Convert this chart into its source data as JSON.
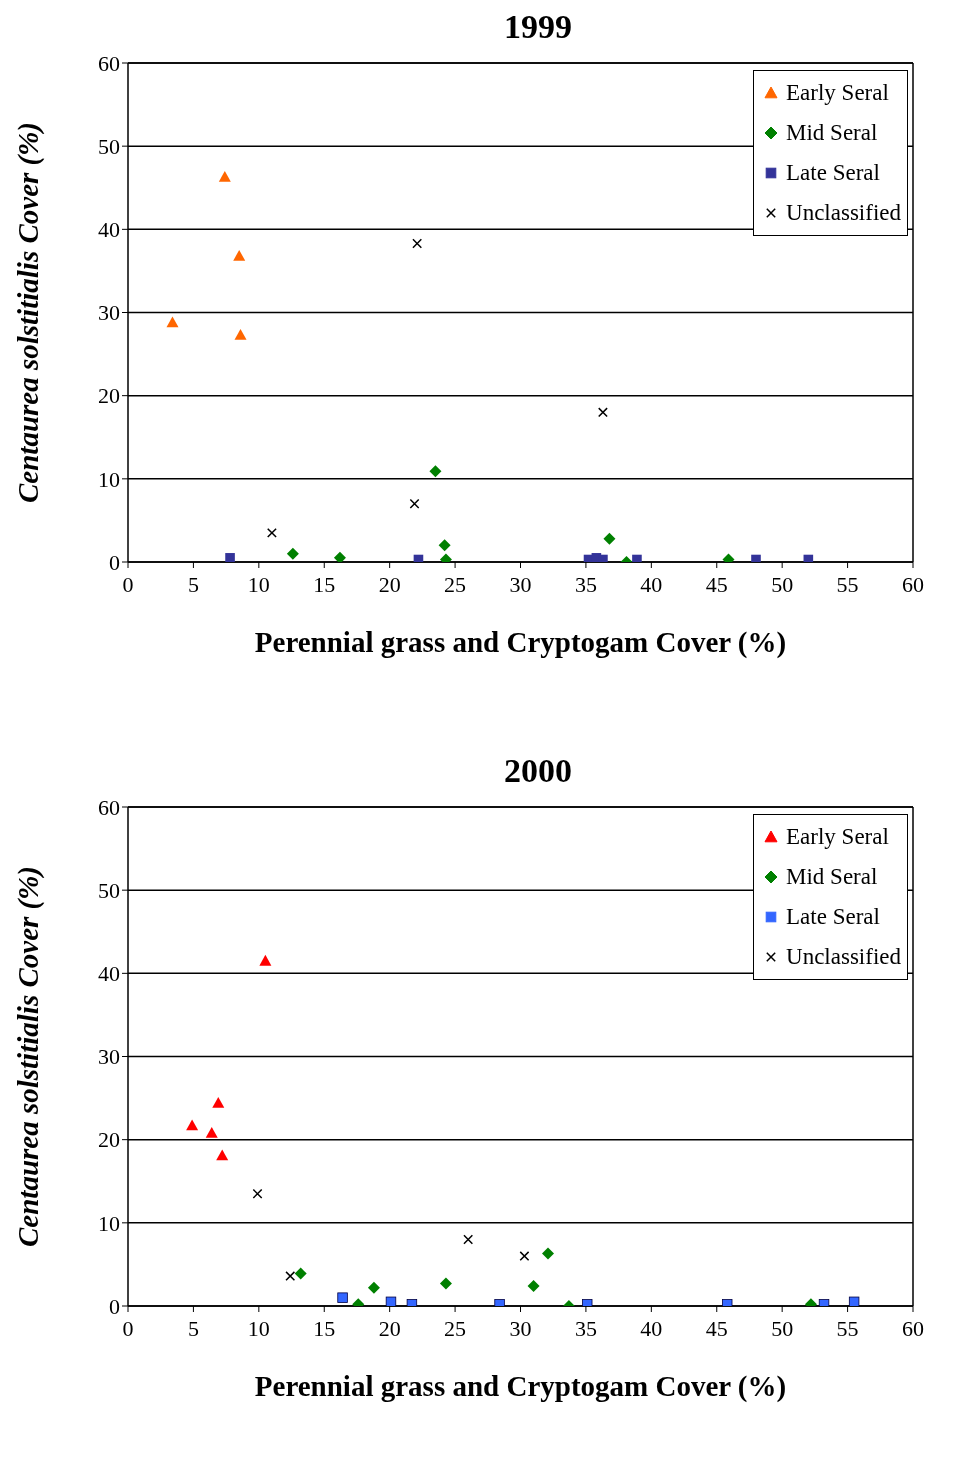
{
  "chart_data": [
    {
      "type": "scatter",
      "title": "1999",
      "xlabel": "Perennial grass and Cryptogam Cover (%)",
      "ylabel": "Centaurea solstitialis   Cover (%)",
      "xlim": [
        0,
        60
      ],
      "xticks": [
        0,
        5,
        10,
        15,
        20,
        25,
        30,
        35,
        40,
        45,
        50,
        55,
        60
      ],
      "ylim": [
        0,
        60
      ],
      "yticks": [
        0,
        10,
        20,
        30,
        40,
        50,
        60
      ],
      "grid": "y",
      "legend": "top right",
      "series": [
        {
          "name": "Early Seral",
          "color": "#ff6600",
          "marker": "triangle",
          "x": [
            3.4,
            7.4,
            8.5,
            8.6
          ],
          "values": [
            28.8,
            46.3,
            36.8,
            27.3
          ]
        },
        {
          "name": "Mid Seral",
          "color": "#008000",
          "marker": "diamond",
          "x": [
            12.6,
            16.2,
            23.5,
            24.2,
            24.3,
            36.8,
            38.1,
            45.9
          ],
          "values": [
            1.0,
            0.5,
            10.9,
            2.0,
            0.3,
            2.8,
            0,
            0.3
          ]
        },
        {
          "name": "Late Seral",
          "color": "#333399",
          "marker": "square",
          "x": [
            7.8,
            22.2,
            35.2,
            35.8,
            36.3,
            38.9,
            48,
            52
          ],
          "values": [
            0.5,
            0.3,
            0.3,
            0.5,
            0.3,
            0.3,
            0.3,
            0.3
          ]
        },
        {
          "name": "Unclassified",
          "color": "#000000",
          "marker": "cross",
          "x": [
            11,
            22.1,
            21.9,
            36.3
          ],
          "values": [
            3.5,
            38.3,
            7,
            18
          ]
        }
      ]
    },
    {
      "type": "scatter",
      "title": "2000",
      "xlabel": "Perennial grass and Cryptogam Cover (%)",
      "ylabel": "Centaurea solstitialis   Cover (%)",
      "xlim": [
        0,
        60
      ],
      "xticks": [
        0,
        5,
        10,
        15,
        20,
        25,
        30,
        35,
        40,
        45,
        50,
        55,
        60
      ],
      "ylim": [
        0,
        60
      ],
      "yticks": [
        0,
        10,
        20,
        30,
        40,
        50,
        60
      ],
      "grid": "y",
      "legend": "top right",
      "series": [
        {
          "name": "Early Seral",
          "color": "#ff0000",
          "marker": "triangle",
          "x": [
            4.9,
            6.4,
            6.9,
            7.2,
            10.5
          ],
          "values": [
            21.7,
            20.8,
            24.4,
            18.1,
            41.5
          ]
        },
        {
          "name": "Mid Seral",
          "color": "#008000",
          "marker": "diamond",
          "x": [
            13.2,
            17.6,
            18.8,
            24.3,
            31,
            32.1,
            33.7,
            52.2
          ],
          "values": [
            3.9,
            0.2,
            2.2,
            2.7,
            2.4,
            6.3,
            0,
            0.2
          ]
        },
        {
          "name": "Late Seral",
          "color": "#3366ff",
          "marker": "square",
          "x": [
            16.4,
            20.1,
            21.7,
            28.4,
            35.1,
            45.8,
            53.2,
            55.5
          ],
          "values": [
            1.0,
            0.5,
            0.2,
            0.2,
            0.2,
            0.2,
            0.2,
            0.5
          ]
        },
        {
          "name": "Unclassified",
          "color": "#000000",
          "marker": "cross",
          "x": [
            9.9,
            12.4,
            26,
            30.3
          ],
          "values": [
            13.5,
            3.6,
            8.0,
            6.0
          ]
        }
      ]
    }
  ]
}
